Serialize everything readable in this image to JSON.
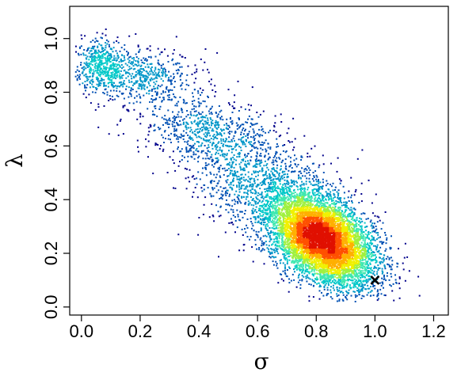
{
  "chart_data": {
    "type": "scatter",
    "title": "",
    "xlabel": "σ",
    "ylabel": "λ",
    "xlim": [
      -0.04,
      1.25
    ],
    "ylim": [
      -0.03,
      1.12
    ],
    "x_ticks": [
      0.0,
      0.2,
      0.4,
      0.6,
      0.8,
      1.0,
      1.2
    ],
    "x_tick_labels": [
      "0.0",
      "0.2",
      "0.4",
      "0.6",
      "0.8",
      "1.0",
      "1.2"
    ],
    "y_ticks": [
      0.0,
      0.2,
      0.4,
      0.6,
      0.8,
      1.0
    ],
    "y_tick_labels": [
      "0.0",
      "0.2",
      "0.4",
      "0.6",
      "0.8",
      "1.0"
    ],
    "grid": false,
    "legend": "none",
    "color_scale": "density (blue to red)",
    "colors": [
      "#00008b",
      "#0050b4",
      "#0096c8",
      "#00c8c8",
      "#40e8b0",
      "#a0f040",
      "#f0f000",
      "#ffb000",
      "#ff5000",
      "#e01000"
    ],
    "density_clusters": [
      {
        "center": [
          0.82,
          0.25
        ],
        "spread": [
          0.09,
          0.085
        ],
        "correlation": -0.45,
        "count": 7000
      },
      {
        "center": [
          0.62,
          0.45
        ],
        "spread": [
          0.16,
          0.12
        ],
        "correlation": -0.6,
        "count": 1400
      },
      {
        "center": [
          0.42,
          0.66
        ],
        "spread": [
          0.12,
          0.06
        ],
        "correlation": -0.3,
        "count": 500
      },
      {
        "center": [
          0.17,
          0.87
        ],
        "spread": [
          0.11,
          0.055
        ],
        "correlation": -0.3,
        "count": 700
      },
      {
        "center": [
          0.06,
          0.9
        ],
        "spread": [
          0.04,
          0.05
        ],
        "correlation": 0.0,
        "count": 300
      }
    ],
    "true_value_marker": {
      "x": 1.0,
      "y": 0.1,
      "symbol": "x"
    }
  }
}
